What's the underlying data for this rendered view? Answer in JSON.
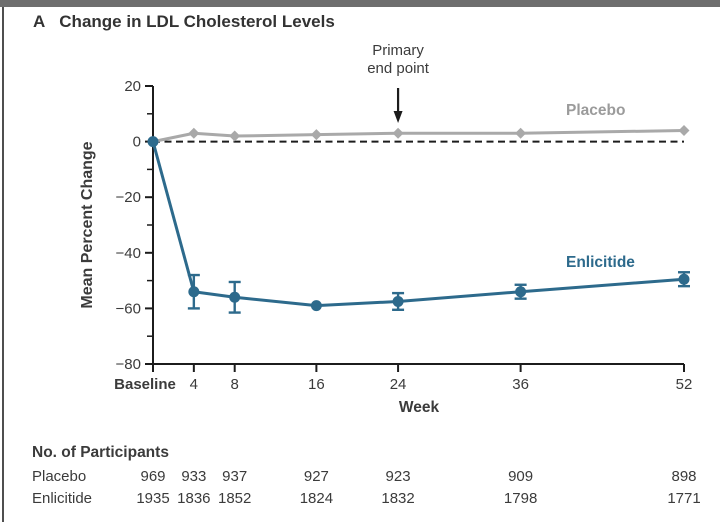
{
  "title": {
    "panel_label": "A",
    "text": "Change in LDL Cholesterol Levels"
  },
  "colors": {
    "enlicitide": "#2d6a8c",
    "placebo_line": "#a9a9a9",
    "placebo_label": "#9b9b9b",
    "axis": "#1c1c1c",
    "top_bar": "#6e6e6e",
    "left_border": "#4f4f4f"
  },
  "chart_data": {
    "type": "line",
    "x": [
      0,
      4,
      8,
      16,
      24,
      36,
      52
    ],
    "x_tick_labels": [
      "Baseline",
      "4",
      "8",
      "16",
      "24",
      "36",
      "52"
    ],
    "xlabel": "Week",
    "ylabel": "Mean Percent Change",
    "ylim": [
      -80,
      20
    ],
    "xlim": [
      0,
      52
    ],
    "y_ticks": [
      20,
      0,
      -20,
      -40,
      -60,
      -80
    ],
    "y_tick_labels": [
      "20",
      "0",
      "−20",
      "−40",
      "−60",
      "−80"
    ],
    "y_minor_ticks": [
      10,
      -10,
      -30,
      -50,
      -70
    ],
    "zero_reference_line": true,
    "grid": false,
    "legend_position": "on-chart-labels",
    "series": [
      {
        "name": "Placebo",
        "marker": "diamond",
        "color": "#a9a9a9",
        "values": [
          0,
          3,
          2,
          2.5,
          3,
          3,
          4
        ],
        "errors": [
          0,
          0,
          0,
          0,
          0,
          0,
          0
        ]
      },
      {
        "name": "Enlicitide",
        "marker": "circle",
        "color": "#2d6a8c",
        "values": [
          0,
          -54,
          -56,
          -59,
          -57.5,
          -54,
          -49.5
        ],
        "errors": [
          0,
          6,
          5.5,
          0,
          3,
          2.5,
          2.5
        ]
      }
    ],
    "annotation": {
      "line1": "Primary",
      "line2": "end point",
      "x": 24
    }
  },
  "participants": {
    "header": "No. of Participants",
    "rows": [
      {
        "label": "Placebo",
        "values": [
          "969",
          "933",
          "937",
          "927",
          "923",
          "909",
          "898"
        ]
      },
      {
        "label": "Enlicitide",
        "values": [
          "1935",
          "1836",
          "1852",
          "1824",
          "1832",
          "1798",
          "1771"
        ]
      }
    ]
  }
}
